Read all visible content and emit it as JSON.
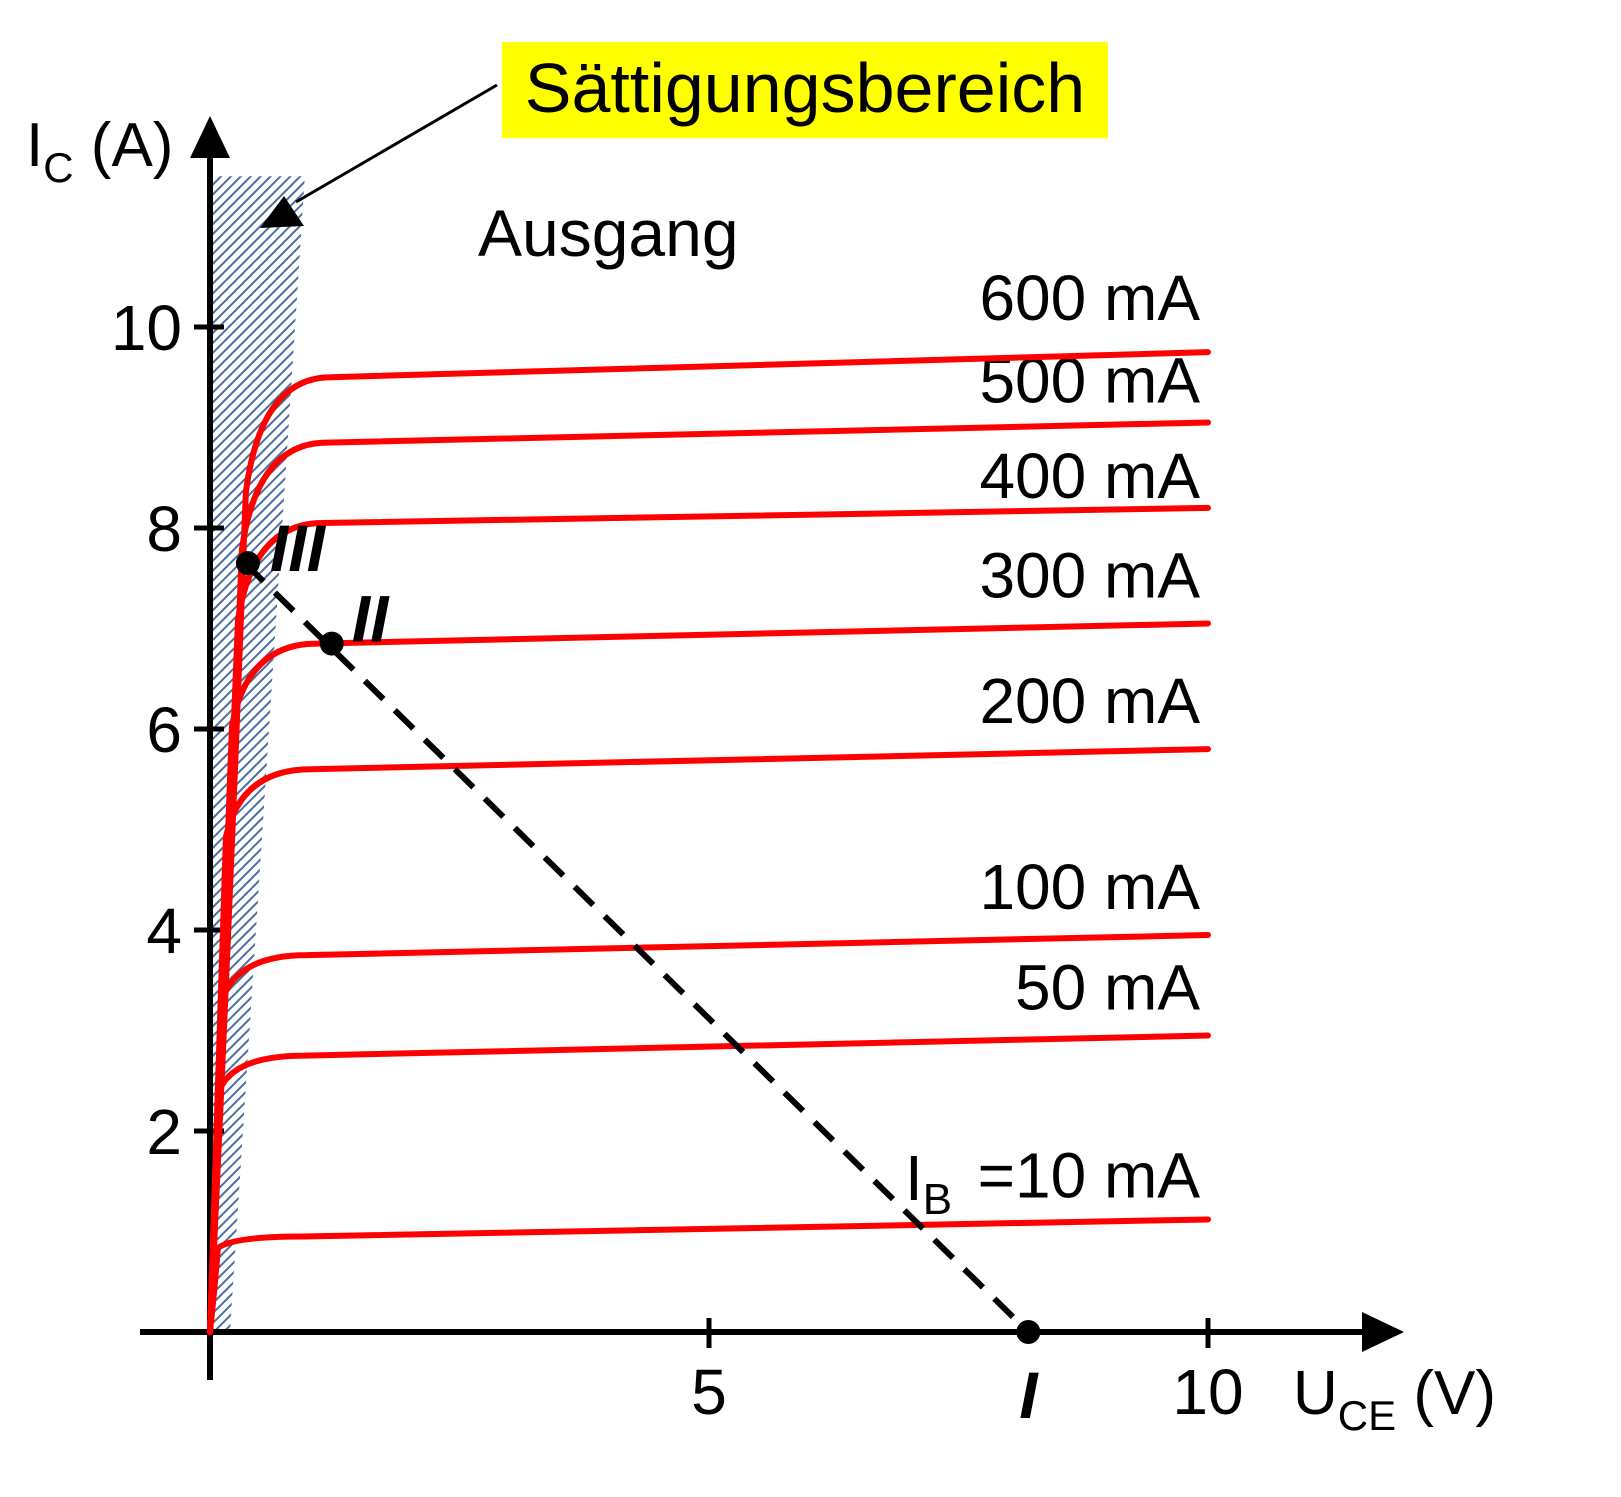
{
  "chart_data": {
    "type": "line",
    "title": "Ausgang",
    "xlabel_main": "U",
    "xlabel_sub": "CE",
    "xlabel_unit": " (V)",
    "ylabel_main": "I",
    "ylabel_sub": "C",
    "ylabel_unit": " (A)",
    "xlim": [
      0,
      11.5
    ],
    "ylim": [
      0,
      11.6
    ],
    "x_ticks": [
      5,
      10
    ],
    "y_ticks": [
      2,
      4,
      6,
      8,
      10
    ],
    "ib_prefix_main": "I",
    "ib_prefix_sub": "B",
    "series": [
      {
        "name": "=10 mA",
        "knee": 0.95,
        "end": 1.12,
        "sat": 0.08
      },
      {
        "name": "50 mA",
        "knee": 2.75,
        "end": 2.95,
        "sat": 0.1
      },
      {
        "name": "100 mA",
        "knee": 3.75,
        "end": 3.95,
        "sat": 0.12
      },
      {
        "name": "200 mA",
        "knee": 5.6,
        "end": 5.8,
        "sat": 0.16
      },
      {
        "name": "300 mA",
        "knee": 6.85,
        "end": 7.05,
        "sat": 0.22
      },
      {
        "name": "400 mA",
        "knee": 8.05,
        "end": 8.2,
        "sat": 0.28
      },
      {
        "name": "500 mA",
        "knee": 8.85,
        "end": 9.05,
        "sat": 0.32
      },
      {
        "name": "600 mA",
        "knee": 9.5,
        "end": 9.75,
        "sat": 0.36
      }
    ],
    "saturation_region": {
      "label": "Sättigungsbereich",
      "boundary": [
        [
          0.95,
          11.5
        ],
        [
          0.2,
          0
        ]
      ]
    },
    "load_line": {
      "from": [
        0.35,
        7.65
      ],
      "to": [
        8.2,
        0
      ]
    },
    "operating_points": [
      {
        "label": "I",
        "x": 8.2,
        "y": 0
      },
      {
        "label": "II",
        "x": 1.22,
        "y": 6.85
      },
      {
        "label": "III",
        "x": 0.38,
        "y": 7.65
      }
    ],
    "colors": {
      "curve": "#ff0000",
      "axis": "#000000",
      "highlight": "#ffff00",
      "hatch": "#4a6fa5"
    }
  }
}
